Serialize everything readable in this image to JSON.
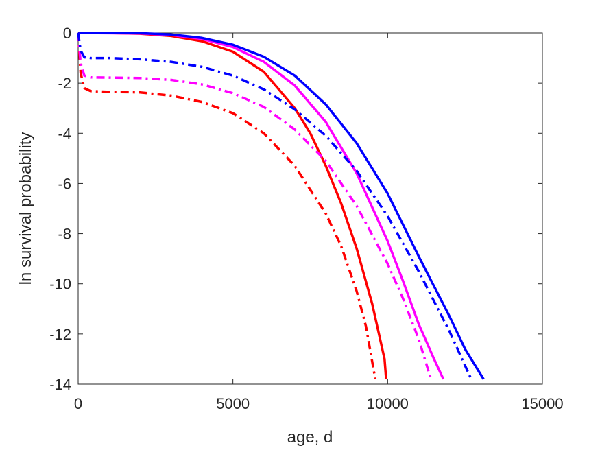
{
  "chart_data": {
    "type": "line",
    "title": "",
    "xlabel": "age, d",
    "ylabel": "ln survival probability",
    "xlim": [
      0,
      15000
    ],
    "ylim": [
      -14,
      0
    ],
    "xticks": [
      0,
      5000,
      10000,
      15000
    ],
    "yticks": [
      0,
      -2,
      -4,
      -6,
      -8,
      -10,
      -12,
      -14
    ],
    "grid": false,
    "series": [
      {
        "color": "#ff0000",
        "style": "solid",
        "points": [
          [
            0,
            0
          ],
          [
            1000,
            -0.003
          ],
          [
            2000,
            -0.03
          ],
          [
            3000,
            -0.12
          ],
          [
            4000,
            -0.33
          ],
          [
            5000,
            -0.75
          ],
          [
            6000,
            -1.55
          ],
          [
            7000,
            -3.0
          ],
          [
            7500,
            -4.0
          ],
          [
            8000,
            -5.3
          ],
          [
            8500,
            -6.8
          ],
          [
            9000,
            -8.6
          ],
          [
            9500,
            -10.8
          ],
          [
            9900,
            -13.0
          ],
          [
            9950,
            -13.8
          ]
        ]
      },
      {
        "color": "#ff00ff",
        "style": "solid",
        "points": [
          [
            0,
            0
          ],
          [
            2000,
            -0.02
          ],
          [
            3000,
            -0.08
          ],
          [
            4000,
            -0.24
          ],
          [
            5000,
            -0.56
          ],
          [
            6000,
            -1.15
          ],
          [
            7000,
            -2.1
          ],
          [
            8000,
            -3.55
          ],
          [
            9000,
            -5.6
          ],
          [
            10000,
            -8.3
          ],
          [
            10500,
            -9.9
          ],
          [
            11000,
            -11.6
          ],
          [
            11500,
            -13.0
          ],
          [
            11800,
            -13.8
          ]
        ]
      },
      {
        "color": "#0000ff",
        "style": "solid",
        "points": [
          [
            0,
            0
          ],
          [
            2000,
            -0.01
          ],
          [
            3000,
            -0.06
          ],
          [
            4000,
            -0.2
          ],
          [
            5000,
            -0.47
          ],
          [
            6000,
            -0.95
          ],
          [
            7000,
            -1.7
          ],
          [
            8000,
            -2.85
          ],
          [
            9000,
            -4.4
          ],
          [
            10000,
            -6.4
          ],
          [
            11000,
            -8.9
          ],
          [
            12000,
            -11.3
          ],
          [
            12500,
            -12.6
          ],
          [
            13100,
            -13.8
          ]
        ]
      },
      {
        "color": "#ff0000",
        "style": "dashdot",
        "points": [
          [
            0,
            0
          ],
          [
            80,
            -1.6
          ],
          [
            200,
            -2.2
          ],
          [
            400,
            -2.32
          ],
          [
            1000,
            -2.35
          ],
          [
            2000,
            -2.37
          ],
          [
            3000,
            -2.5
          ],
          [
            4000,
            -2.75
          ],
          [
            5000,
            -3.2
          ],
          [
            6000,
            -4.0
          ],
          [
            7000,
            -5.3
          ],
          [
            8000,
            -7.2
          ],
          [
            8500,
            -8.5
          ],
          [
            9000,
            -10.3
          ],
          [
            9300,
            -11.7
          ],
          [
            9600,
            -13.8
          ]
        ]
      },
      {
        "color": "#ff00ff",
        "style": "dashdot",
        "points": [
          [
            0,
            0
          ],
          [
            80,
            -1.2
          ],
          [
            200,
            -1.7
          ],
          [
            400,
            -1.77
          ],
          [
            1000,
            -1.78
          ],
          [
            2000,
            -1.8
          ],
          [
            3000,
            -1.87
          ],
          [
            4000,
            -2.05
          ],
          [
            5000,
            -2.4
          ],
          [
            6000,
            -2.95
          ],
          [
            7000,
            -3.85
          ],
          [
            8000,
            -5.1
          ],
          [
            9000,
            -6.9
          ],
          [
            10000,
            -9.2
          ],
          [
            10500,
            -10.6
          ],
          [
            11000,
            -12.2
          ],
          [
            11400,
            -13.8
          ]
        ]
      },
      {
        "color": "#0000ff",
        "style": "dashdot",
        "points": [
          [
            0,
            0
          ],
          [
            80,
            -0.7
          ],
          [
            200,
            -0.97
          ],
          [
            400,
            -1.0
          ],
          [
            1000,
            -1.0
          ],
          [
            2000,
            -1.05
          ],
          [
            3000,
            -1.15
          ],
          [
            4000,
            -1.35
          ],
          [
            5000,
            -1.7
          ],
          [
            6000,
            -2.25
          ],
          [
            7000,
            -3.05
          ],
          [
            8000,
            -4.1
          ],
          [
            9000,
            -5.5
          ],
          [
            10000,
            -7.3
          ],
          [
            11000,
            -9.5
          ],
          [
            12000,
            -11.9
          ],
          [
            12700,
            -13.8
          ]
        ]
      }
    ]
  }
}
